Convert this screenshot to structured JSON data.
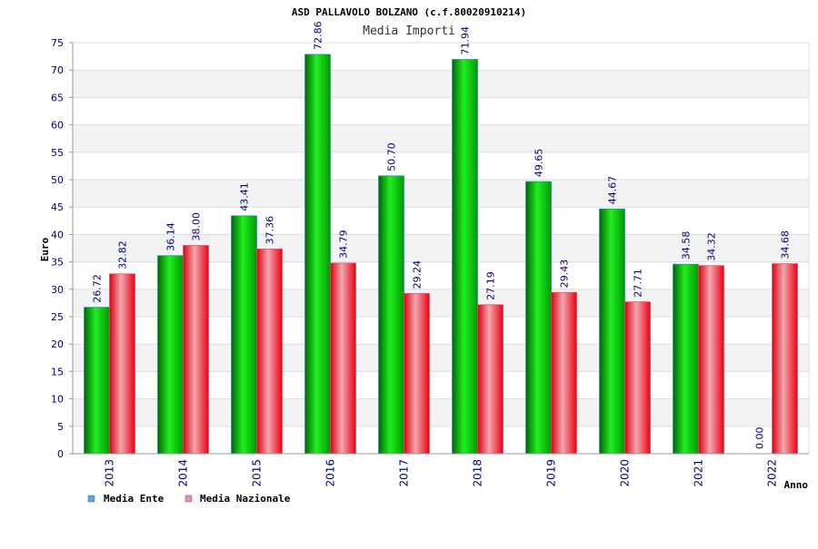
{
  "chart_data": {
    "type": "bar",
    "title": "ASD PALLAVOLO BOLZANO (c.f.80020910214)",
    "subtitle": "Media Importi",
    "xlabel": "Anno",
    "ylabel": "Euro",
    "ylim": [
      0,
      75
    ],
    "yticks": [
      0,
      5,
      10,
      15,
      20,
      25,
      30,
      35,
      40,
      45,
      50,
      55,
      60,
      65,
      70,
      75
    ],
    "grid": true,
    "legend_position": "bottom-left",
    "categories": [
      "2013",
      "2014",
      "2015",
      "2016",
      "2017",
      "2018",
      "2019",
      "2020",
      "2021",
      "2022"
    ],
    "series": [
      {
        "name": "Media Ente",
        "color": "#00aa00",
        "legend_color": "#66a3e0",
        "values": [
          26.72,
          36.14,
          43.41,
          72.86,
          50.7,
          71.94,
          49.65,
          44.67,
          34.58,
          0.0
        ],
        "labels": [
          "26.72",
          "36.14",
          "43.41",
          "72.86",
          "50.70",
          "71.94",
          "49.65",
          "44.67",
          "34.58",
          "0.00"
        ]
      },
      {
        "name": "Media Nazionale",
        "color": "#ee0011",
        "legend_color": "#e58bbf",
        "values": [
          32.82,
          38.0,
          37.36,
          34.79,
          29.24,
          27.19,
          29.43,
          27.71,
          34.32,
          34.68
        ],
        "labels": [
          "32.82",
          "38.00",
          "37.36",
          "34.79",
          "29.24",
          "27.19",
          "29.43",
          "27.71",
          "34.32",
          "34.68"
        ]
      }
    ]
  }
}
